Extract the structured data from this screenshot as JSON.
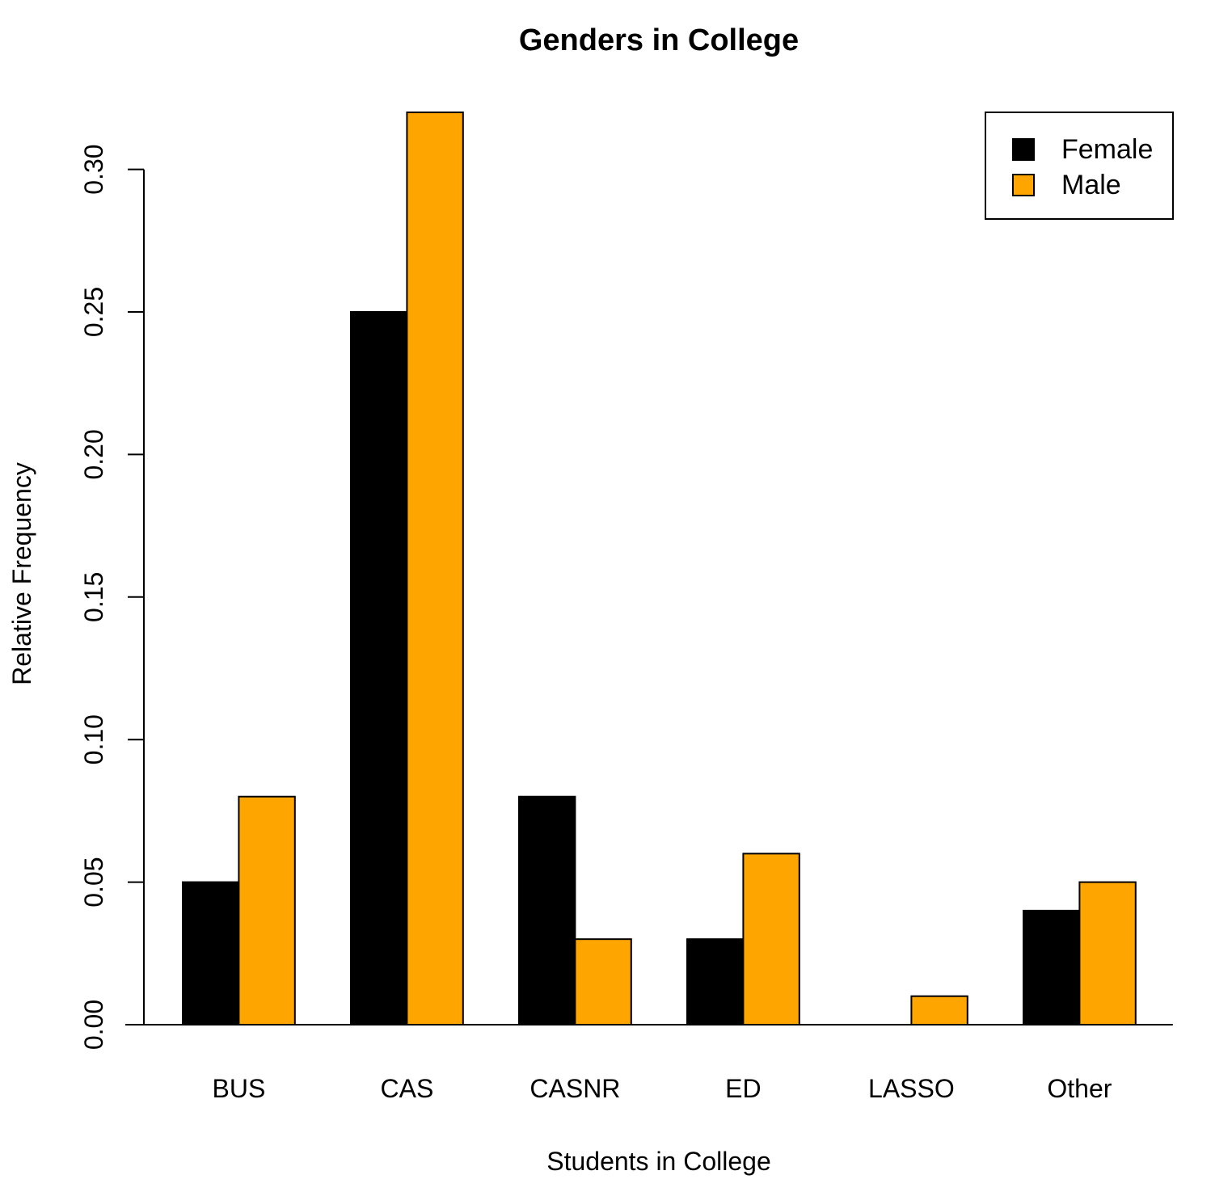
{
  "chart_data": {
    "type": "bar",
    "title": "Genders in College",
    "xlabel": "Students in College",
    "ylabel": "Relative Frequency",
    "categories": [
      "BUS",
      "CAS",
      "CASNR",
      "ED",
      "LASSO",
      "Other"
    ],
    "series": [
      {
        "name": "Female",
        "color": "#000000",
        "values": [
          0.05,
          0.25,
          0.08,
          0.03,
          0.0,
          0.04
        ]
      },
      {
        "name": "Male",
        "color": "#FFA500",
        "values": [
          0.08,
          0.32,
          0.03,
          0.06,
          0.01,
          0.05
        ]
      }
    ],
    "ylim": [
      0,
      0.32
    ],
    "yticks": [
      "0.00",
      "0.05",
      "0.10",
      "0.15",
      "0.20",
      "0.25",
      "0.30"
    ],
    "grid": false,
    "legend_position": "top-right"
  }
}
